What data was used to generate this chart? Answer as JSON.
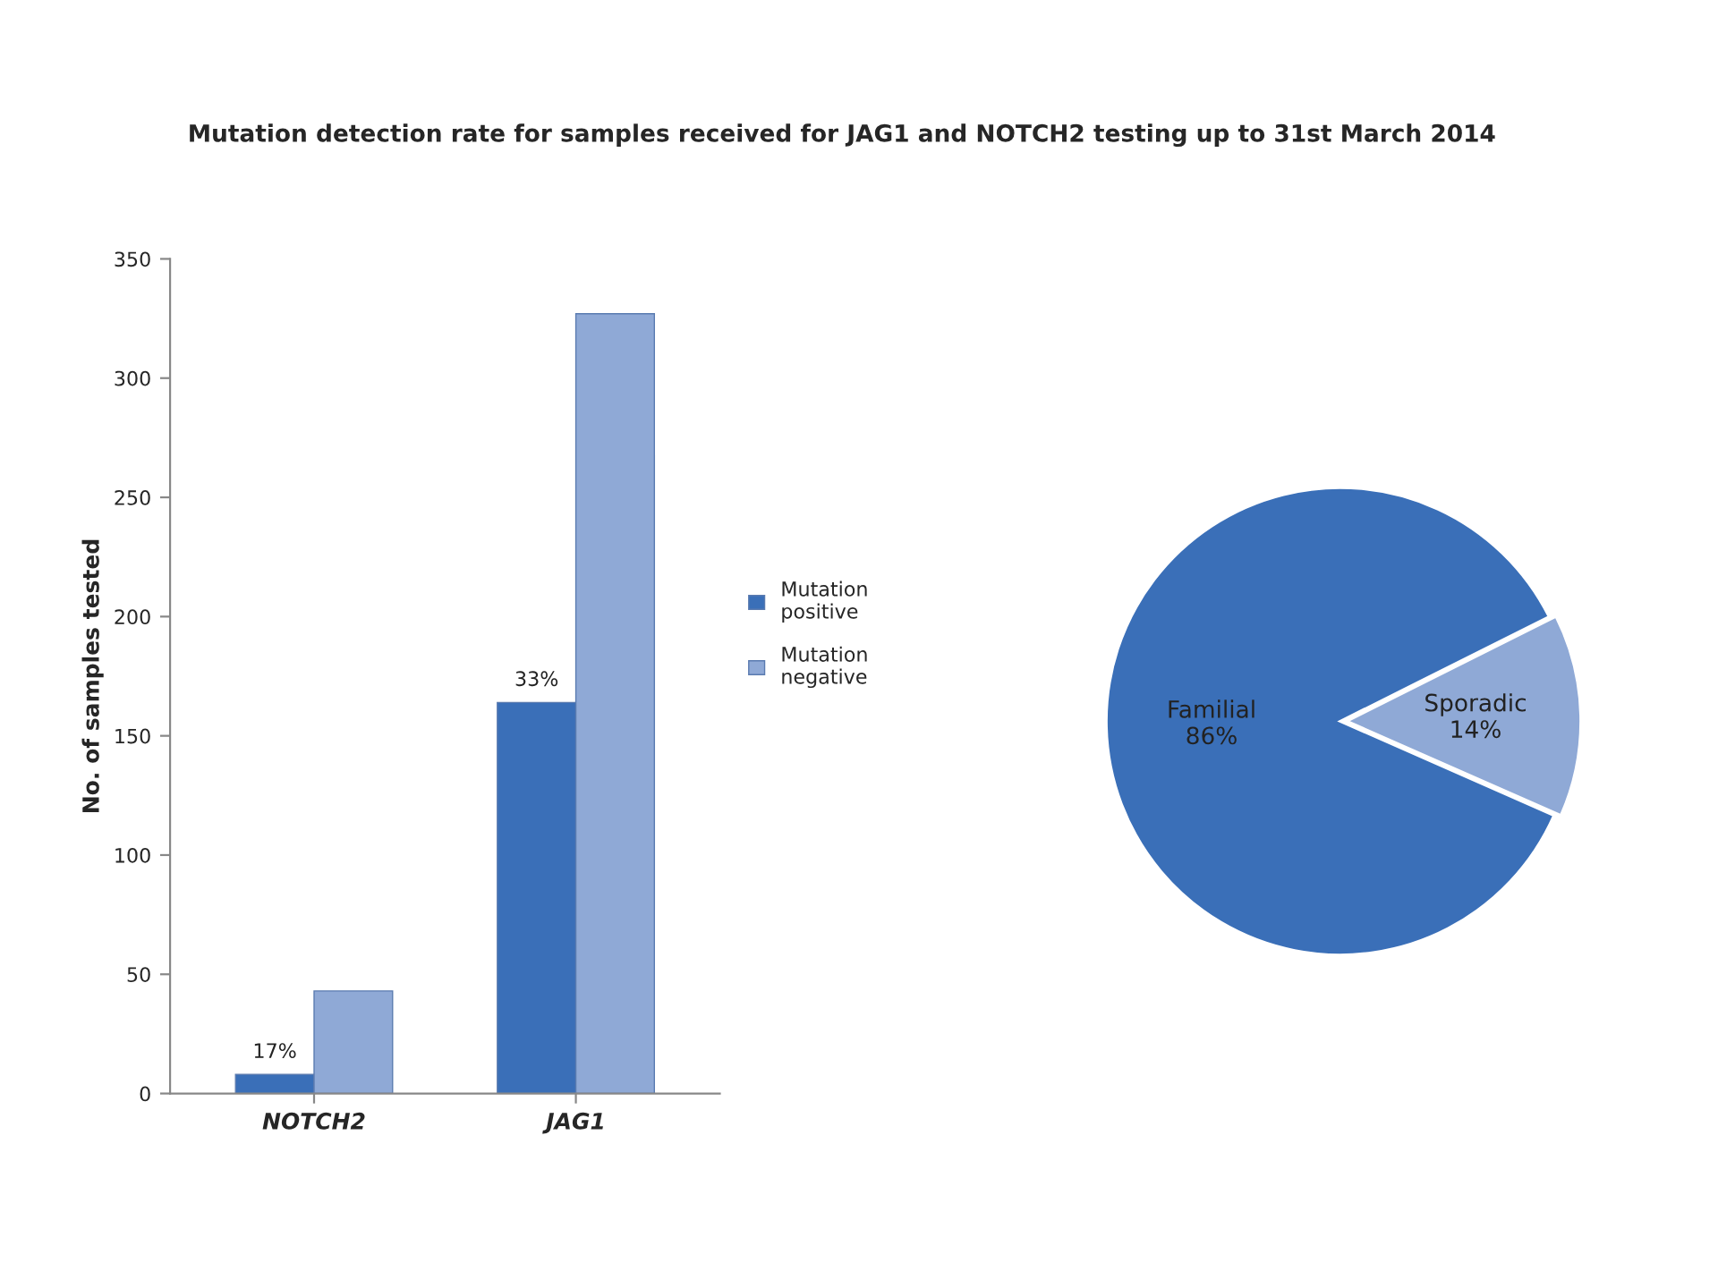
{
  "chart_data": [
    {
      "type": "bar",
      "title": "Mutation detection rate for samples received for JAG1 and NOTCH2 testing up to 31st March 2014",
      "ylabel": "No. of samples tested",
      "categories": [
        "NOTCH2",
        "JAG1"
      ],
      "series": [
        {
          "name": "Mutation positive",
          "color": "#3a6fb8",
          "values": [
            8,
            164
          ]
        },
        {
          "name": "Mutation negative",
          "color": "#8fa9d6",
          "values": [
            43,
            327
          ]
        }
      ],
      "annotations": [
        {
          "text": "17%",
          "x": "NOTCH2",
          "y": 8
        },
        {
          "text": "33%",
          "x": "JAG1",
          "y": 164
        }
      ],
      "ylim": [
        0,
        350
      ],
      "yticks": [
        0,
        50,
        100,
        150,
        200,
        250,
        300,
        350
      ],
      "legend": "right",
      "grid": false
    },
    {
      "type": "pie",
      "categories": [
        "Familial",
        "Sporadic"
      ],
      "values": [
        86,
        14
      ],
      "value_labels": [
        "86%",
        "14%"
      ],
      "colors": [
        "#3a6fb8",
        "#8fa9d6"
      ]
    }
  ]
}
